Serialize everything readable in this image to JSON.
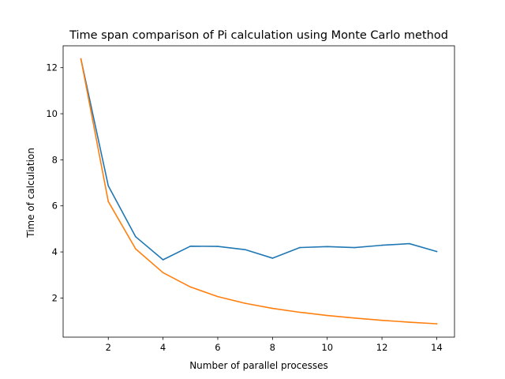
{
  "chart_data": {
    "type": "line",
    "title": "Time span comparison of Pi calculation using Monte Carlo method",
    "xlabel": "Number of parallel processes",
    "ylabel": "Time of calculation",
    "xlim": [
      0.35,
      14.65
    ],
    "ylim": [
      0.3,
      12.95
    ],
    "xticks": [
      2,
      4,
      6,
      8,
      10,
      12,
      14
    ],
    "yticks": [
      2,
      4,
      6,
      8,
      10,
      12
    ],
    "grid": false,
    "legend": "none",
    "x": [
      1,
      2,
      3,
      4,
      5,
      6,
      7,
      8,
      9,
      10,
      11,
      12,
      13,
      14
    ],
    "series": [
      {
        "color": "#1f77b4",
        "values": [
          12.38,
          6.87,
          4.66,
          3.66,
          4.25,
          4.24,
          4.1,
          3.73,
          4.19,
          4.23,
          4.19,
          4.29,
          4.36,
          4.02
        ]
      },
      {
        "color": "#ff7f0e",
        "values": [
          12.38,
          6.19,
          4.13,
          3.1,
          2.48,
          2.06,
          1.77,
          1.55,
          1.38,
          1.24,
          1.13,
          1.03,
          0.95,
          0.88
        ]
      }
    ]
  }
}
